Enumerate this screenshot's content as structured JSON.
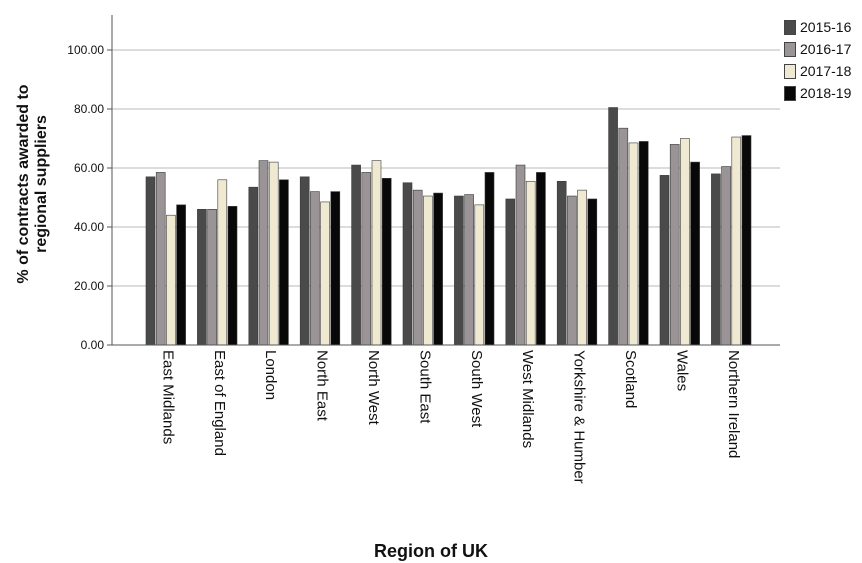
{
  "chart_data": {
    "type": "bar",
    "title": "",
    "xlabel": "Region of UK",
    "ylabel": "% of contracts awarded to regional suppliers",
    "ylim": [
      0,
      110
    ],
    "yticks": [
      "0.00",
      "20.00",
      "40.00",
      "60.00",
      "80.00",
      "100.00"
    ],
    "grid": "horizontal",
    "legend_position": "top-right",
    "categories": [
      "East Midlands",
      "East of England",
      "London",
      "North East",
      "North West",
      "South East",
      "South West",
      "West Midlands",
      "Yorkshire & Humber",
      "Scotland",
      "Wales",
      "Northern Ireland"
    ],
    "series": [
      {
        "name": "2015-16",
        "color": "#4a4a4a",
        "values": [
          57.0,
          46.0,
          53.5,
          57.0,
          61.0,
          55.0,
          50.5,
          49.5,
          55.5,
          80.5,
          57.5,
          58.0
        ]
      },
      {
        "name": "2016-17",
        "color": "#9a9496",
        "values": [
          58.5,
          46.0,
          62.5,
          52.0,
          58.5,
          52.5,
          51.0,
          61.0,
          50.5,
          73.5,
          68.0,
          60.5
        ]
      },
      {
        "name": "2017-18",
        "color": "#efe9d2",
        "values": [
          44.0,
          56.0,
          62.0,
          48.5,
          62.5,
          50.5,
          47.5,
          55.5,
          52.5,
          68.5,
          70.0,
          70.5
        ]
      },
      {
        "name": "2018-19",
        "color": "#080808",
        "values": [
          47.5,
          47.0,
          56.0,
          52.0,
          56.5,
          51.5,
          58.5,
          58.5,
          49.5,
          69.0,
          62.0,
          71.0
        ]
      }
    ]
  }
}
